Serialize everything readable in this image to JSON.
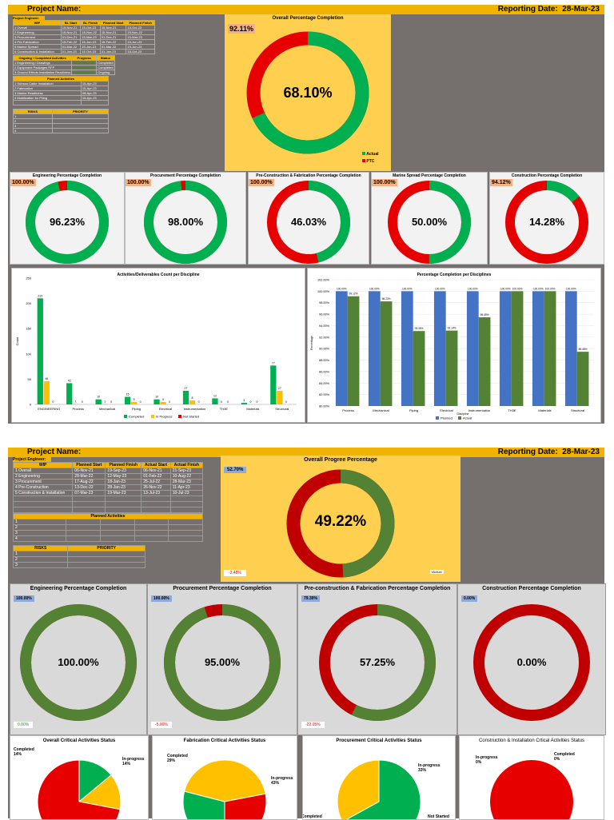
{
  "colors": {
    "green": "#00b050",
    "red": "#e60000",
    "darkgreen": "#548235",
    "darkred": "#c00000",
    "yellow": "#ffd050",
    "orange": "#ffc000",
    "blue": "#4472c4",
    "olive": "#548235"
  },
  "d1": {
    "project_label": "Project Name:",
    "reporting_label": "Reporting Date:",
    "reporting_date": "28-Mar-23",
    "engineer_label": "Project Engineer:",
    "wip_headers": [
      "WIP",
      "BL Start",
      "BL Finish",
      "Planned Start",
      "Planned Finish"
    ],
    "wip_rows": [
      [
        "1 Overall",
        "15-Nov-21",
        "15-Oct-23",
        "15-Nov-21",
        "15-Oct-23"
      ],
      [
        "2 Engineering",
        "15-Nov-21",
        "15-Nov-22",
        "15-Nov-21",
        "15-Nov-22"
      ],
      [
        "3 Procurement",
        "01-Dec-21",
        "15-Mar-23",
        "01-Dec-21",
        "15-Mar-23"
      ],
      [
        "4 Pre-Fabrication",
        "15-Feb-22",
        "15-Jun-23",
        "15-Feb-22",
        "15-Jun-23"
      ],
      [
        "5 Marine Spread",
        "01-Mar-22",
        "15-Jun-23",
        "01-Mar-22",
        "15-Jun-23"
      ],
      [
        "6 Construction & Installation",
        "01-Jan-23",
        "15-Oct-23",
        "01-Jan-23",
        "15-Oct-23"
      ]
    ],
    "ongoing_headers": [
      "Ongoing / Completed Activities",
      "Progress",
      "Status"
    ],
    "ongoing_rows": [
      [
        "1 Engineering / Drawings",
        "",
        "Completed"
      ],
      [
        "2 Equipment Packages RFP",
        "",
        "Completed"
      ],
      [
        "3 Ground Effects Installation Readiness",
        "",
        "Ongoing"
      ]
    ],
    "planned_header": "Planned Activities",
    "planned_rows": [
      [
        "1 Subsea Cable Installation",
        "15-Apr-23"
      ],
      [
        "2 Fabrication",
        "15-Apr-23"
      ],
      [
        "3 Marine Readiness",
        "08-Apr-23"
      ],
      [
        "4 Mobilization for Piling",
        "15-Apr-23"
      ]
    ],
    "risk_headers": [
      "RISKS",
      "PRIORITY"
    ],
    "risk_rows": [
      "1",
      "2",
      "3",
      "4"
    ],
    "overall": {
      "title": "Overall Percentage Completion",
      "actual_pct": "68.10%",
      "ptc_badge": "92.11%",
      "actual": 68.1,
      "legend_actual": "Actual",
      "legend_ptc": "PTC"
    },
    "donuts": [
      {
        "title": "Engineering Percentage Completion",
        "badge": "100.00%",
        "value": "96.23%",
        "pct": 96.23
      },
      {
        "title": "Procurement Percentage Completion",
        "badge": "100.00%",
        "value": "98.00%",
        "pct": 98.0
      },
      {
        "title": "Pre-Construction & Fabrication Percentage Completion",
        "badge": "100.00%",
        "value": "46.03%",
        "pct": 46.03
      },
      {
        "title": "Marine Spread Percentage Completion",
        "badge": "100.00%",
        "value": "50.00%",
        "pct": 50.0
      },
      {
        "title": "Construction Percentage Completion",
        "badge": "94.12%",
        "value": "14.28%",
        "pct": 14.28
      }
    ]
  },
  "chart_data": [
    {
      "type": "bar",
      "title": "Activities/Deliverables  Count per Discipline",
      "ylabel": "Count",
      "ylim": [
        0,
        250
      ],
      "yticks": [
        "0",
        "50",
        "100",
        "150",
        "200",
        "250"
      ],
      "categories": [
        "ENGINEERING",
        "Process",
        "Mechanical",
        "Piping",
        "Electrical",
        "Instrumentation",
        "TH3E",
        "Materials",
        "Structural"
      ],
      "series": [
        {
          "name": "Completed",
          "color": "#00b050",
          "values": [
            210,
            42,
            10,
            15,
            10,
            27,
            12,
            3,
            77
          ]
        },
        {
          "name": "In Progress",
          "color": "#ffc000",
          "values": [
            46,
            1,
            1,
            5,
            5,
            8,
            0,
            0,
            27
          ]
        },
        {
          "name": "Not Started",
          "color": "#e60000",
          "values": [
            0,
            0,
            0,
            0,
            0,
            0,
            0,
            0,
            0
          ]
        }
      ],
      "labels": [
        [
          "210",
          "46",
          "0"
        ],
        [
          "42",
          "1",
          "0"
        ],
        [
          "10",
          "1",
          "0"
        ],
        [
          "15",
          "5",
          "0"
        ],
        [
          "10",
          "5",
          "0"
        ],
        [
          "27",
          "8",
          "0"
        ],
        [
          "12",
          "0",
          "0"
        ],
        [
          "3",
          "0",
          "0"
        ],
        [
          "77",
          "27",
          "0"
        ]
      ]
    },
    {
      "type": "bar",
      "title": "Percentage Completion per Disciplines",
      "ylabel": "Percentage",
      "xlabel": "Discipline",
      "ylim": [
        80,
        102
      ],
      "yticks": [
        "80.00%",
        "82.00%",
        "84.00%",
        "86.00%",
        "88.00%",
        "90.00%",
        "92.00%",
        "94.00%",
        "96.00%",
        "98.00%",
        "100.00%",
        "102.00%"
      ],
      "categories": [
        "Process",
        "Mechanical",
        "Piping",
        "Electrical",
        "Instrumentation",
        "TH3E",
        "Materials",
        "Structural"
      ],
      "series": [
        {
          "name": "Planned",
          "color": "#4472c4",
          "values": [
            100,
            100,
            100,
            100,
            100,
            100,
            100,
            100
          ]
        },
        {
          "name": "Actual",
          "color": "#548235",
          "values": [
            99.12,
            98.23,
            93.06,
            93.14,
            95.45,
            100,
            100,
            89.45
          ]
        }
      ],
      "labels_planned": [
        "100.00%",
        "100.00%",
        "100.00%",
        "100.00%",
        "100.00%",
        "100.00%",
        "100.00%",
        "100.00%"
      ],
      "labels_actual": [
        "99.12%",
        "98.23%",
        "93.06%",
        "93.14%",
        "95.45%",
        "100.00%",
        "100.00%",
        "89.45%"
      ]
    }
  ],
  "d2": {
    "project_label": "Project Name:",
    "reporting_label": "Reporting Date:",
    "reporting_date": "28-Mar-23",
    "engineer_label": "Project Engineer:",
    "wip_headers": [
      "WIP",
      "Planned Start",
      "Planned Finish",
      "Actual Start",
      "Actual Finish"
    ],
    "wip_rows": [
      [
        "1 Overall",
        "06-Nov-21",
        "19-Sep-23",
        "06-Nov-21",
        "21-Sep-23"
      ],
      [
        "2 Engineering",
        "28-Mar-22",
        "12-May-23",
        "01-Feb-22",
        "10-Aug-22"
      ],
      [
        "3 Procurement",
        "17-Aug-22",
        "18-Jan-23",
        "25-Jul-22",
        "28-Mar-23"
      ],
      [
        "4 Pre-Construction",
        "13-Dec-22",
        "28-Jan-23",
        "26-Nov-22",
        "11-Apr-23"
      ],
      [
        "5 Construction & Installation",
        "07-Mar-23",
        "19-Mar-23",
        "13-Jul-23",
        "10-Jul-23"
      ]
    ],
    "planned_header": "Planned Activities",
    "planned_rows": [
      "1",
      "2",
      "3",
      "4"
    ],
    "risk_headers": [
      "RISKS",
      "PRIORITY"
    ],
    "risk_rows": [
      "1",
      "2",
      "3"
    ],
    "overall": {
      "title": "Overall Progree Percentage",
      "actual_pct": "49.22%",
      "badge": "52.70%",
      "variance": "-3.48%",
      "actual": 49.22,
      "legend": "Actual"
    },
    "donuts": [
      {
        "title": "Engineering Percentage Completion",
        "badge": "100.00%",
        "value": "100.00%",
        "pct": 100,
        "variance": "0.00%"
      },
      {
        "title": "Procurement Percentage Completion",
        "badge": "100.00%",
        "value": "95.00%",
        "pct": 95,
        "variance": "-5.00%"
      },
      {
        "title": "Pre-construction & Fabrication Percentage Completion",
        "badge": "79.30%",
        "value": "57.25%",
        "pct": 57.25,
        "variance": "-22.05%"
      },
      {
        "title": "Construction Percentage Completion",
        "badge": "0.00%",
        "value": "0.00%",
        "pct": 0
      }
    ],
    "pies": [
      {
        "title": "Overall Critical Activities Status",
        "completed": "Completed",
        "completed_pct": "14%",
        "inprogress": "In-progress",
        "inprogress_pct": "14%",
        "slices": [
          14,
          14,
          72
        ]
      },
      {
        "title": "Fabrication Critical Activities Status",
        "completed": "Completed",
        "completed_pct": "29%",
        "inprogress": "In-progress",
        "inprogress_pct": "43%",
        "slices": [
          29,
          43,
          28
        ]
      },
      {
        "title": "Procurement Critical Activities Status",
        "completed": "Completed",
        "inprogress": "In-progress",
        "inprogress_pct": "33%",
        "notstarted": "Not Started",
        "slices": [
          67,
          33,
          0
        ]
      },
      {
        "title": "Construction & Installation Crtical Activities Status",
        "inprogress": "In-progress",
        "inprogress_pct": "0%",
        "completed": "Completed",
        "completed_pct": "0%",
        "slices": [
          0,
          0,
          100
        ]
      }
    ]
  }
}
